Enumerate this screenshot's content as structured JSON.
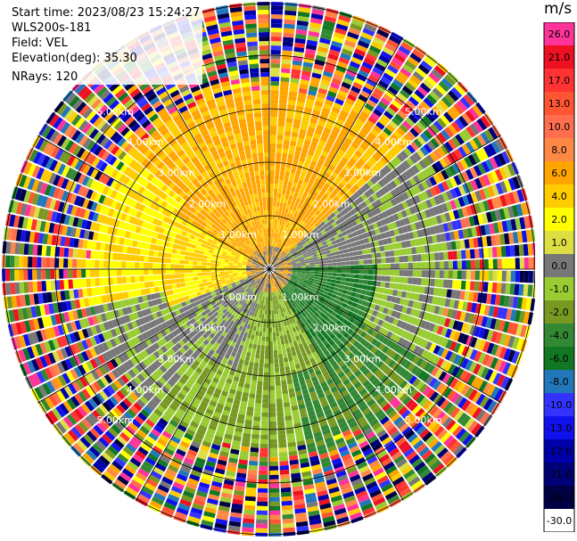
{
  "header": {
    "start_time": "Start time: 2023/08/23 15:24:27",
    "instrument": "WLS200s-181",
    "field": "Field: VEL",
    "elevation": "Elevation(deg): 35.30",
    "nrays": "NRays: 120"
  },
  "colorbar": {
    "unit": "m/s",
    "levels": [
      {
        "label": "26.0",
        "color": "#ff3399"
      },
      {
        "label": "21.0",
        "color": "#ee1122"
      },
      {
        "label": "17.0",
        "color": "#ff3333"
      },
      {
        "label": "13.0",
        "color": "#ff5533"
      },
      {
        "label": "10.0",
        "color": "#ff6f4f"
      },
      {
        "label": "8.0",
        "color": "#ff8844"
      },
      {
        "label": "6.0",
        "color": "#ffa500"
      },
      {
        "label": "4.0",
        "color": "#ffcc00"
      },
      {
        "label": "2.0",
        "color": "#ffff00"
      },
      {
        "label": "1.0",
        "color": "#dddd44"
      },
      {
        "label": "0.0",
        "color": "#777777"
      },
      {
        "label": "-1.0",
        "color": "#99cc33"
      },
      {
        "label": "-2.0",
        "color": "#779922"
      },
      {
        "label": "-4.0",
        "color": "#338833"
      },
      {
        "label": "-6.0",
        "color": "#117722"
      },
      {
        "label": "-8.0",
        "color": "#2277bb"
      },
      {
        "label": "-10.0",
        "color": "#3333ff"
      },
      {
        "label": "-13.0",
        "color": "#1111ee"
      },
      {
        "label": "-17.0",
        "color": "#0000aa"
      },
      {
        "label": "-21.0",
        "color": "#000077"
      },
      {
        "label": "-26.0",
        "color": "#000044"
      },
      {
        "label": "-30.0",
        "color": "#ffffff"
      }
    ]
  },
  "range_labels": [
    "1.00km",
    "2.00km",
    "3.00km",
    "4.00km",
    "5.00km"
  ]
}
